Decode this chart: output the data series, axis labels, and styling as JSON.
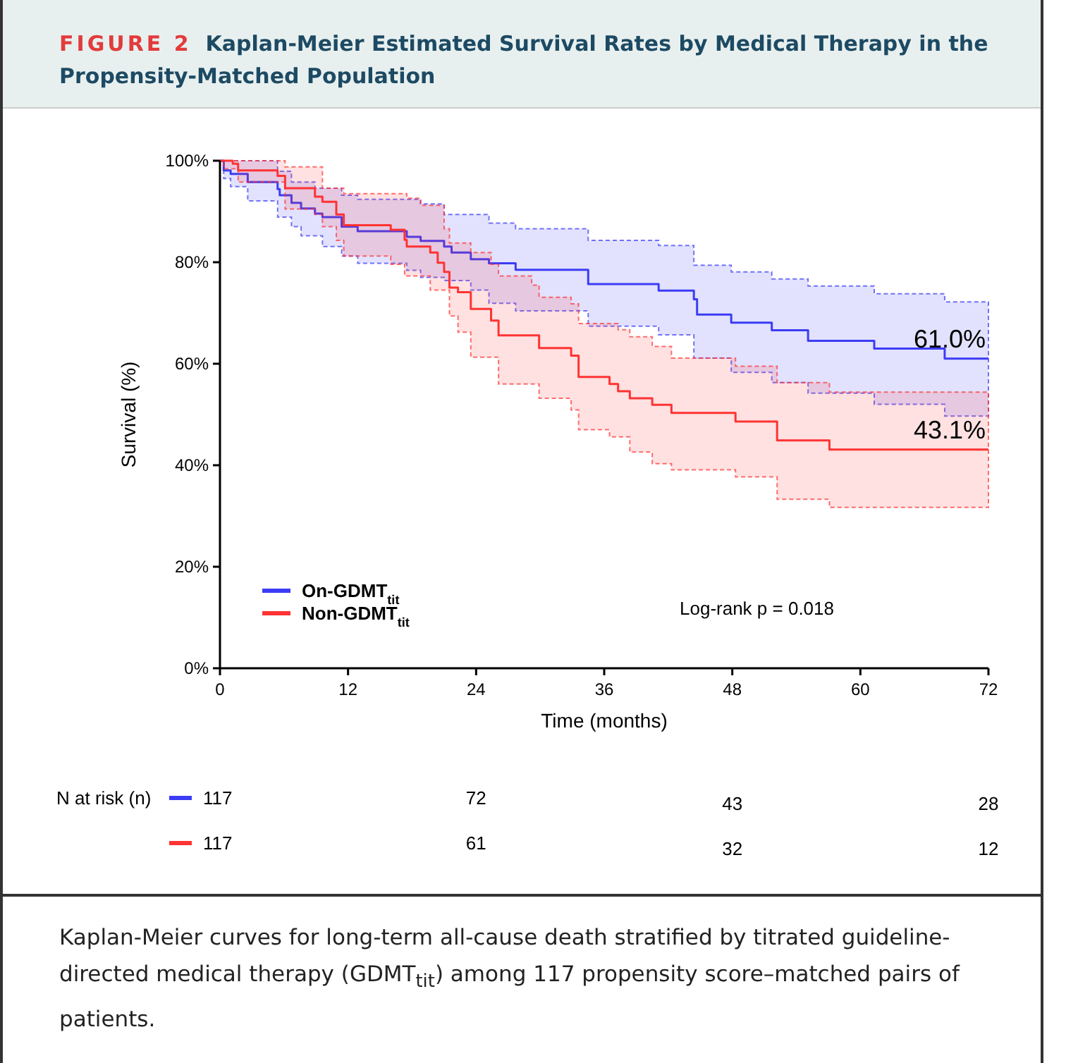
{
  "chart_data": {
    "type": "step",
    "subtitle": "FIGURE 2",
    "title": "Kaplan-Meier Estimated Survival Rates by Medical Therapy in the Propensity-Matched Population",
    "xlabel": "Time (months)",
    "ylabel": "Survival (%)",
    "xlim": [
      0,
      72
    ],
    "ylim": [
      0,
      100
    ],
    "xticks": [
      0,
      12,
      24,
      36,
      48,
      60,
      72
    ],
    "yticks": [
      {
        "value": 0,
        "label": "0%"
      },
      {
        "value": 20,
        "label": "20%"
      },
      {
        "value": 40,
        "label": "40%"
      },
      {
        "value": 60,
        "label": "60%"
      },
      {
        "value": 80,
        "label": "80%"
      },
      {
        "value": 100,
        "label": "100%"
      }
    ],
    "grid": false,
    "legend": "bottom left",
    "marker": "none",
    "line_style": "solid",
    "series": [
      {
        "name": "On-GDMT$_{tit}$",
        "color": "#3c3cf5",
        "x": [
          0,
          0.35,
          1.0,
          2.6,
          5.4,
          5.6,
          6.7,
          7.6,
          8.9,
          9.6,
          11.4,
          12.9,
          17.5,
          18.8,
          21.0,
          21.7,
          23.5,
          25.2,
          27.7,
          34.5,
          41.1,
          44.4,
          44.7,
          47.9,
          51.7,
          55.1,
          61.3,
          67.9,
          72
        ],
        "values": [
          100,
          98.1,
          97.4,
          95.8,
          94.4,
          93.2,
          91.7,
          90.6,
          89.6,
          88.9,
          87.0,
          86.1,
          85.0,
          84.2,
          83.1,
          81.9,
          80.6,
          79.8,
          78.5,
          75.7,
          74.4,
          72.7,
          69.7,
          68.1,
          66.6,
          64.5,
          63.0,
          61.0,
          61.0
        ],
        "upper": [
          100,
          100,
          100,
          100,
          97.9,
          97.9,
          95.8,
          95.8,
          94.6,
          94.6,
          93.2,
          92.4,
          92.4,
          91.5,
          89.4,
          89.4,
          89.4,
          87.7,
          86.6,
          84.3,
          83.3,
          79.4,
          79.4,
          78.1,
          76.7,
          75.3,
          73.8,
          72.2,
          72.2
        ],
        "lower": [
          100,
          96.5,
          94.9,
          92.1,
          88.9,
          88.9,
          87.0,
          85.2,
          85.2,
          83.1,
          81.2,
          79.8,
          78.4,
          77.0,
          76.4,
          76.4,
          74.5,
          71.9,
          70.4,
          67.4,
          65.7,
          61.1,
          61.1,
          58.3,
          56.3,
          54.2,
          52.0,
          49.7,
          49.7
        ]
      },
      {
        "name": "Non-GDMT$_{tit}$",
        "color": "#ff3333",
        "x": [
          0,
          0.35,
          1.2,
          1.7,
          5.4,
          6.1,
          8.9,
          9.6,
          10.9,
          11.6,
          16.0,
          17.3,
          17.5,
          18.8,
          19.7,
          20.4,
          21.0,
          21.5,
          22.3,
          23.5,
          25.4,
          26.1,
          29.2,
          29.9,
          32.9,
          33.6,
          36.5,
          37.3,
          38.4,
          40.5,
          42.3,
          48.3,
          52.2,
          57.1,
          72
        ],
        "values": [
          100,
          100,
          99.4,
          98.1,
          97.0,
          94.6,
          92.9,
          91.9,
          89.4,
          87.3,
          86.4,
          84.4,
          83.1,
          83.1,
          81.9,
          79.9,
          78.1,
          75.0,
          74.1,
          70.8,
          68.5,
          65.6,
          65.6,
          63.1,
          61.6,
          57.4,
          56.0,
          54.6,
          53.2,
          51.9,
          50.3,
          48.6,
          44.9,
          43.1,
          43.1
        ],
        "upper": [
          100,
          100,
          100,
          100,
          100,
          98.8,
          98.8,
          94.6,
          94.6,
          93.5,
          93.5,
          93.5,
          92.6,
          91.2,
          91.2,
          91.2,
          86.6,
          83.8,
          83.8,
          81.9,
          79.6,
          77.3,
          75.5,
          73.1,
          71.8,
          67.9,
          67.9,
          66.7,
          65.3,
          63.4,
          61.1,
          59.5,
          56.3,
          54.4,
          54.4
        ],
        "lower": [
          100,
          98.4,
          98.4,
          95.8,
          95.8,
          90.5,
          89.4,
          87.0,
          84.3,
          81.2,
          79.6,
          77.3,
          77.3,
          77.3,
          74.5,
          74.5,
          74.5,
          69.4,
          66.2,
          61.3,
          61.3,
          56.0,
          56.0,
          53.2,
          50.9,
          47.0,
          45.6,
          45.6,
          42.6,
          40.3,
          39.1,
          37.7,
          33.3,
          31.7,
          31.7
        ]
      }
    ],
    "annotations": [
      {
        "text": "61.0%",
        "x": 72,
        "y": 61.0
      },
      {
        "text": "43.1%",
        "x": 72,
        "y": 43.1
      },
      "Log-rank p = 0.018",
      "N at risk (n)",
      "117",
      "72",
      "43",
      "28",
      "117",
      "61",
      "32",
      "12",
      "Kaplan-Meier curves for long-term all-cause death stratified by titrated guideline-directed medical therapy (GDMT$_{tit}$) among 117 propensity score–matched pairs of patients."
    ]
  }
}
